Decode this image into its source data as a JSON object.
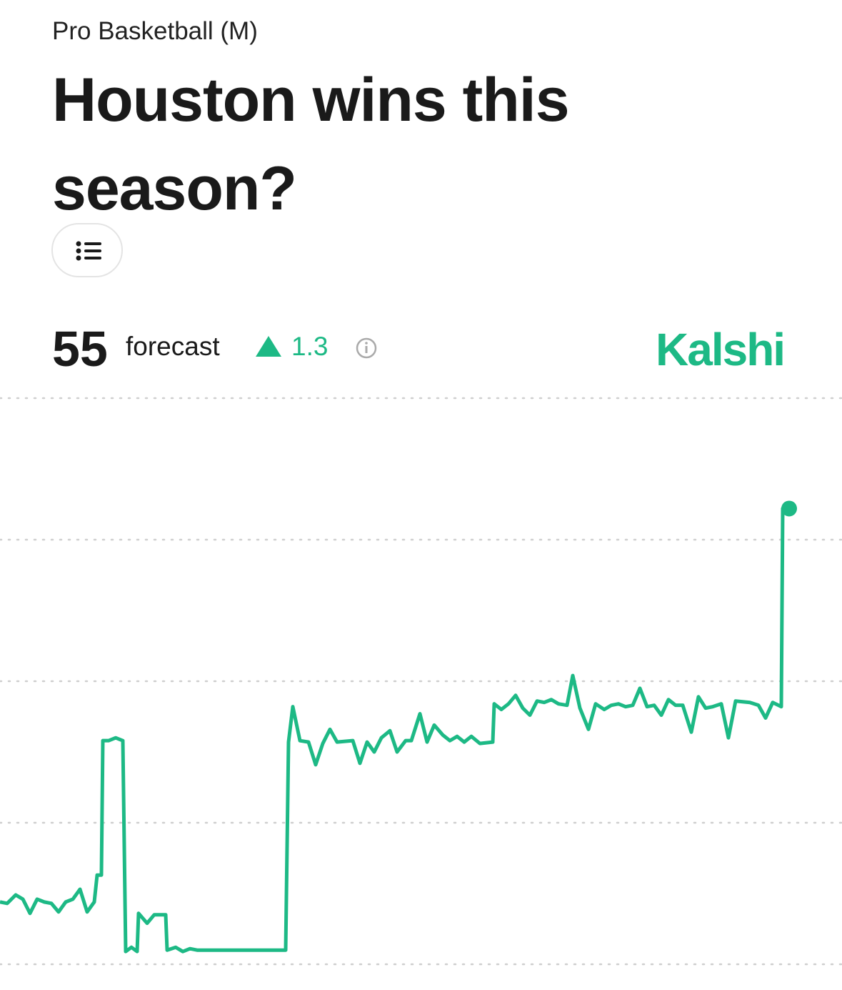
{
  "header": {
    "category": "Pro Basketball (M)",
    "title": "Houston wins this season?"
  },
  "forecast": {
    "value": "55",
    "label": "forecast",
    "change": "1.3"
  },
  "brand": "Kalshi",
  "chart_data": {
    "type": "line",
    "grid": true,
    "color": "#1db985",
    "xlim": [
      0,
      1105
    ],
    "ylim": [
      52,
      56
    ],
    "yticks": [
      52,
      53,
      54,
      55,
      56
    ],
    "x": [
      0,
      10,
      22,
      32,
      42,
      52,
      62,
      72,
      82,
      92,
      102,
      112,
      122,
      132,
      136,
      142,
      144,
      152,
      162,
      172,
      176,
      184,
      192,
      194,
      206,
      216,
      232,
      234,
      246,
      256,
      266,
      276,
      400,
      404,
      410,
      420,
      432,
      442,
      452,
      462,
      472,
      494,
      504,
      514,
      524,
      534,
      546,
      556,
      568,
      576,
      588,
      598,
      608,
      620,
      630,
      640,
      650,
      660,
      672,
      690,
      692,
      702,
      712,
      722,
      732,
      742,
      752,
      762,
      772,
      782,
      794,
      802,
      812,
      824,
      834,
      846,
      856,
      866,
      876,
      886,
      896,
      906,
      916,
      926,
      936,
      946,
      956,
      968,
      978,
      988,
      998,
      1010,
      1020,
      1030,
      1050,
      1062,
      1072,
      1082,
      1094,
      1096,
      1105
    ],
    "series": [
      {
        "name": "Houston",
        "values": [
          52.44,
          52.43,
          52.49,
          52.46,
          52.36,
          52.46,
          52.44,
          52.43,
          52.37,
          52.44,
          52.46,
          52.53,
          52.37,
          52.44,
          52.63,
          52.63,
          53.58,
          53.58,
          53.6,
          53.58,
          52.09,
          52.12,
          52.09,
          52.36,
          52.29,
          52.35,
          52.35,
          52.1,
          52.12,
          52.09,
          52.11,
          52.1,
          52.1,
          53.57,
          53.82,
          53.58,
          53.57,
          53.41,
          53.56,
          53.66,
          53.57,
          53.58,
          53.42,
          53.57,
          53.5,
          53.6,
          53.65,
          53.5,
          53.58,
          53.58,
          53.77,
          53.57,
          53.69,
          53.62,
          53.58,
          53.61,
          53.57,
          53.61,
          53.56,
          53.57,
          53.84,
          53.8,
          53.84,
          53.9,
          53.81,
          53.76,
          53.86,
          53.85,
          53.87,
          53.84,
          53.83,
          54.04,
          53.81,
          53.66,
          53.84,
          53.8,
          53.83,
          53.84,
          53.82,
          53.83,
          53.95,
          53.82,
          53.83,
          53.76,
          53.87,
          53.83,
          53.83,
          53.64,
          53.89,
          53.81,
          53.82,
          53.84,
          53.6,
          53.86,
          53.85,
          53.83,
          53.74,
          53.85,
          53.82,
          55.22,
          55.22
        ]
      }
    ]
  }
}
